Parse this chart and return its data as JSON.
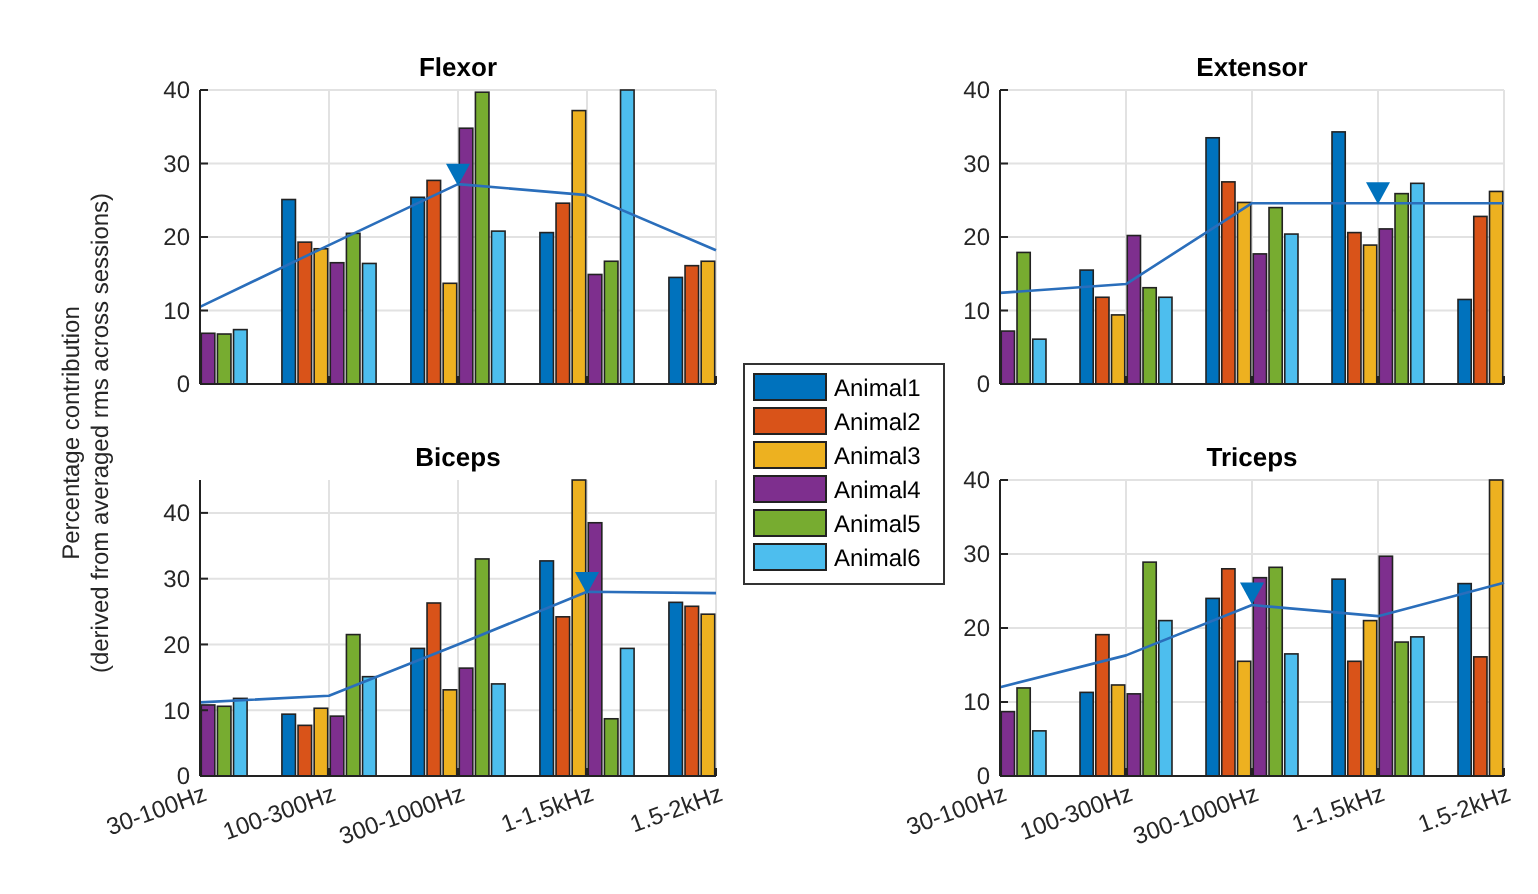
{
  "chart_data": [
    {
      "type": "bar",
      "title": "Flexor",
      "ylabel": "Percentage contribution\n(derived from averaged rms across sessions)",
      "categories": [
        "30-100Hz",
        "100-300Hz",
        "300-1000Hz",
        "1-1.5kHz",
        "1.5-2kHz"
      ],
      "ylim": [
        0,
        40
      ],
      "yticks": [
        0,
        10,
        20,
        30,
        40
      ],
      "grid": true,
      "tick_labels": "y",
      "legend": "right",
      "series": [
        {
          "name": "Animal1",
          "color": "#0072bd",
          "values": [
            null,
            25.1,
            25.4,
            20.6,
            14.5
          ]
        },
        {
          "name": "Animal2",
          "color": "#d95319",
          "values": [
            null,
            19.3,
            27.7,
            24.6,
            16.1
          ]
        },
        {
          "name": "Animal3",
          "color": "#edb120",
          "values": [
            null,
            18.4,
            13.7,
            37.2,
            16.7
          ]
        },
        {
          "name": "Animal4",
          "color": "#7e2f8e",
          "values": [
            6.9,
            16.5,
            34.8,
            14.9,
            null
          ]
        },
        {
          "name": "Animal5",
          "color": "#77ac30",
          "values": [
            6.8,
            20.5,
            39.7,
            16.7,
            null
          ]
        },
        {
          "name": "Animal6",
          "color": "#4dbeee",
          "values": [
            7.4,
            16.4,
            20.8,
            40,
            null
          ]
        },
        {
          "type": "line",
          "color": "#2a6ebb",
          "marker": "none",
          "values": [
            10.5,
            18.9,
            27.2,
            25.7,
            18.2
          ]
        },
        {
          "type": "scatter",
          "color": "#0072bd",
          "marker": "triangle",
          "x": [
            "300-1000Hz"
          ],
          "values": [
            28.6
          ]
        }
      ]
    },
    {
      "type": "bar",
      "title": "Extensor",
      "categories": [
        "30-100Hz",
        "100-300Hz",
        "300-1000Hz",
        "1-1.5kHz",
        "1.5-2kHz"
      ],
      "ylim": [
        0,
        40
      ],
      "yticks": [
        0,
        10,
        20,
        30,
        40
      ],
      "grid": true,
      "tick_labels": "y",
      "series": [
        {
          "color": "#0072bd",
          "values": [
            null,
            15.5,
            33.5,
            34.3,
            11.5
          ]
        },
        {
          "color": "#d95319",
          "values": [
            null,
            11.8,
            27.5,
            20.6,
            22.8
          ]
        },
        {
          "color": "#edb120",
          "values": [
            null,
            9.4,
            24.7,
            18.9,
            26.2
          ]
        },
        {
          "color": "#7e2f8e",
          "values": [
            7.2,
            20.2,
            17.7,
            21.1,
            null
          ]
        },
        {
          "color": "#77ac30",
          "values": [
            17.9,
            13.1,
            24.0,
            25.9,
            null
          ]
        },
        {
          "color": "#4dbeee",
          "values": [
            6.1,
            11.8,
            20.4,
            27.3,
            null
          ]
        },
        {
          "type": "line",
          "color": "#2a6ebb",
          "marker": "none",
          "values": [
            12.4,
            13.6,
            24.6,
            24.6,
            24.6
          ]
        },
        {
          "type": "scatter",
          "color": "#0072bd",
          "marker": "triangle",
          "x": [
            "1-1.5kHz"
          ],
          "values": [
            26.1
          ]
        }
      ]
    },
    {
      "type": "bar",
      "title": "Biceps",
      "categories": [
        "30-100Hz",
        "100-300Hz",
        "300-1000Hz",
        "1-1.5kHz",
        "1.5-2kHz"
      ],
      "ylim": [
        0,
        45
      ],
      "yticks": [
        0,
        10,
        20,
        30,
        40
      ],
      "grid": true,
      "series": [
        {
          "color": "#0072bd",
          "values": [
            null,
            9.4,
            19.4,
            32.7,
            26.4
          ]
        },
        {
          "color": "#d95319",
          "values": [
            null,
            7.7,
            26.3,
            24.2,
            25.8
          ]
        },
        {
          "color": "#edb120",
          "values": [
            null,
            10.3,
            13.1,
            45,
            24.6
          ]
        },
        {
          "color": "#7e2f8e",
          "values": [
            10.8,
            9.1,
            16.4,
            38.5,
            null
          ]
        },
        {
          "color": "#77ac30",
          "values": [
            10.6,
            21.5,
            33.0,
            8.7,
            null
          ]
        },
        {
          "color": "#4dbeee",
          "values": [
            11.8,
            15.1,
            14.0,
            19.4,
            null
          ]
        },
        {
          "type": "line",
          "color": "#2a6ebb",
          "marker": "none",
          "values": [
            11.2,
            12.2,
            20.0,
            28.0,
            27.8
          ]
        },
        {
          "type": "scatter",
          "color": "#0072bd",
          "marker": "triangle",
          "x": [
            "1-1.5kHz"
          ],
          "values": [
            29.5
          ]
        }
      ]
    },
    {
      "type": "bar",
      "title": "Triceps",
      "categories": [
        "30-100Hz",
        "100-300Hz",
        "300-1000Hz",
        "1-1.5kHz",
        "1.5-2kHz"
      ],
      "ylim": [
        0,
        40
      ],
      "yticks": [
        0,
        10,
        20,
        30,
        40
      ],
      "grid": true,
      "series": [
        {
          "color": "#0072bd",
          "values": [
            null,
            11.3,
            24.0,
            26.6,
            26.0
          ]
        },
        {
          "color": "#d95319",
          "values": [
            null,
            19.1,
            28.0,
            15.5,
            16.1
          ]
        },
        {
          "color": "#edb120",
          "values": [
            null,
            12.3,
            15.5,
            21.0,
            40
          ]
        },
        {
          "color": "#7e2f8e",
          "values": [
            8.7,
            11.1,
            26.8,
            29.7,
            null
          ]
        },
        {
          "color": "#77ac30",
          "values": [
            11.9,
            28.9,
            28.2,
            18.1,
            null
          ]
        },
        {
          "color": "#4dbeee",
          "values": [
            6.1,
            21.0,
            16.5,
            18.8,
            null
          ]
        },
        {
          "type": "line",
          "color": "#2a6ebb",
          "marker": "none",
          "values": [
            12.0,
            16.3,
            23.1,
            21.6,
            26.1
          ]
        },
        {
          "type": "scatter",
          "color": "#0072bd",
          "marker": "triangle",
          "x": [
            "300-1000Hz"
          ],
          "values": [
            24.8
          ]
        }
      ]
    }
  ]
}
